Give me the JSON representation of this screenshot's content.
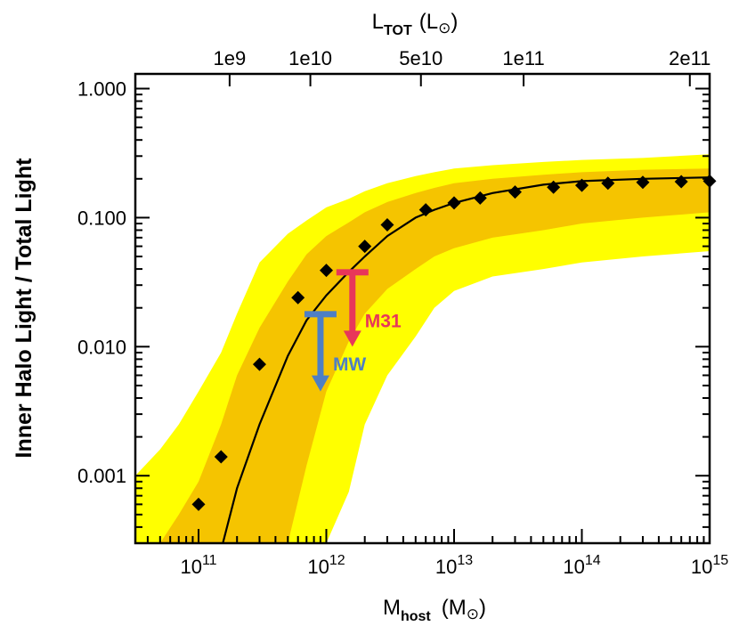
{
  "chart_data": {
    "type": "line",
    "title": "",
    "xscale": "log",
    "yscale": "log",
    "xlim": [
      32000000000.0,
      1000000000000000.0
    ],
    "ylim": [
      0.0003,
      1.3
    ],
    "xlabel": {
      "main": "M",
      "sub": "host",
      "open": "(M",
      "close": ")"
    },
    "ylabel": "Inner Halo Light / Total Light",
    "top_axis": {
      "label": {
        "main": "L",
        "sub": "TOT",
        "open": "(L",
        "close": ")"
      },
      "ticks": [
        {
          "label": "1e9",
          "mhost": 175000000000.0
        },
        {
          "label": "1e10",
          "mhost": 750000000000.0
        },
        {
          "label": "5e10",
          "mhost": 5500000000000.0
        },
        {
          "label": "1e11",
          "mhost": 35000000000000.0
        },
        {
          "label": "2e11",
          "mhost": 700000000000000.0
        }
      ]
    },
    "x_ticks": [
      {
        "base": "10",
        "exp": "11",
        "value": 100000000000.0
      },
      {
        "base": "10",
        "exp": "12",
        "value": 1000000000000.0
      },
      {
        "base": "10",
        "exp": "13",
        "value": 10000000000000.0
      },
      {
        "base": "10",
        "exp": "14",
        "value": 100000000000000.0
      },
      {
        "base": "10",
        "exp": "15",
        "value": 1000000000000000.0
      }
    ],
    "y_ticks": [
      {
        "label": "1.000",
        "value": 1.0
      },
      {
        "label": "0.100",
        "value": 0.1
      },
      {
        "label": "0.010",
        "value": 0.01
      },
      {
        "label": "0.001",
        "value": 0.001
      }
    ],
    "outer_band": {
      "name": "outer scatter",
      "color": "#ffff00",
      "x": [
        32000000000.0,
        50000000000.0,
        70000000000.0,
        100000000000.0,
        150000000000.0,
        200000000000.0,
        300000000000.0,
        500000000000.0,
        700000000000.0,
        1000000000000.0,
        1500000000000.0,
        2000000000000.0,
        3000000000000.0,
        5000000000000.0,
        7000000000000.0,
        10000000000000.0,
        20000000000000.0,
        50000000000000.0,
        100000000000000.0,
        300000000000000.0,
        1000000000000000.0
      ],
      "upper": [
        0.001,
        0.0016,
        0.0025,
        0.0045,
        0.009,
        0.018,
        0.045,
        0.075,
        0.095,
        0.12,
        0.14,
        0.16,
        0.185,
        0.21,
        0.225,
        0.24,
        0.255,
        0.27,
        0.28,
        0.29,
        0.31
      ],
      "lower": [
        0.0003,
        0.0003,
        0.0003,
        0.0003,
        0.0003,
        0.0003,
        0.0003,
        0.0003,
        0.0003,
        0.0003,
        0.00075,
        0.0025,
        0.006,
        0.012,
        0.02,
        0.027,
        0.035,
        0.04,
        0.045,
        0.05,
        0.055
      ]
    },
    "inner_band": {
      "name": "inner scatter",
      "color": "#f5c400",
      "x": [
        50000000000.0,
        70000000000.0,
        100000000000.0,
        150000000000.0,
        200000000000.0,
        300000000000.0,
        500000000000.0,
        700000000000.0,
        1000000000000.0,
        1500000000000.0,
        2000000000000.0,
        3000000000000.0,
        5000000000000.0,
        7000000000000.0,
        10000000000000.0,
        20000000000000.0,
        50000000000000.0,
        100000000000000.0,
        300000000000000.0,
        1000000000000000.0
      ],
      "upper": [
        0.0003,
        0.0005,
        0.0009,
        0.0025,
        0.006,
        0.014,
        0.032,
        0.052,
        0.072,
        0.092,
        0.11,
        0.132,
        0.155,
        0.17,
        0.185,
        0.2,
        0.215,
        0.225,
        0.235,
        0.24
      ],
      "lower": [
        0.0003,
        0.0003,
        0.0003,
        0.0003,
        0.0003,
        0.0003,
        0.0003,
        0.0012,
        0.0045,
        0.011,
        0.018,
        0.028,
        0.04,
        0.05,
        0.058,
        0.07,
        0.08,
        0.09,
        0.1,
        0.11
      ]
    },
    "series": [
      {
        "name": "model median",
        "style": "line",
        "color": "#000000",
        "x": [
          155000000000.0,
          200000000000.0,
          300000000000.0,
          500000000000.0,
          700000000000.0,
          1000000000000.0,
          1500000000000.0,
          2000000000000.0,
          3000000000000.0,
          5000000000000.0,
          7000000000000.0,
          10000000000000.0,
          20000000000000.0,
          50000000000000.0,
          100000000000000.0,
          300000000000000.0,
          1000000000000000.0
        ],
        "values": [
          0.0003,
          0.0008,
          0.0025,
          0.0085,
          0.016,
          0.025,
          0.038,
          0.05,
          0.072,
          0.1,
          0.115,
          0.13,
          0.155,
          0.18,
          0.192,
          0.2,
          0.205
        ]
      },
      {
        "name": "simulation points",
        "style": "diamond",
        "color": "#000000",
        "x": [
          100000000000.0,
          150000000000.0,
          300000000000.0,
          600000000000.0,
          1000000000000.0,
          2000000000000.0,
          3000000000000.0,
          6000000000000.0,
          10000000000000.0,
          16000000000000.0,
          30000000000000.0,
          60000000000000.0,
          100000000000000.0,
          160000000000000.0,
          300000000000000.0,
          600000000000000.0,
          1000000000000000.0
        ],
        "values": [
          0.0006,
          0.0014,
          0.0073,
          0.024,
          0.039,
          0.06,
          0.088,
          0.115,
          0.13,
          0.142,
          0.158,
          0.172,
          0.178,
          0.185,
          0.188,
          0.19,
          0.192
        ]
      }
    ],
    "annotations": [
      {
        "label": "M31",
        "color": "#e8365a",
        "x": 1600000000000.0,
        "y_top": 0.038,
        "y_bottom": 0.01,
        "type": "upper_limit"
      },
      {
        "label": "MW",
        "color": "#4e7fc4",
        "x": 900000000000.0,
        "y_top": 0.018,
        "y_bottom": 0.0045,
        "type": "upper_limit"
      }
    ]
  }
}
